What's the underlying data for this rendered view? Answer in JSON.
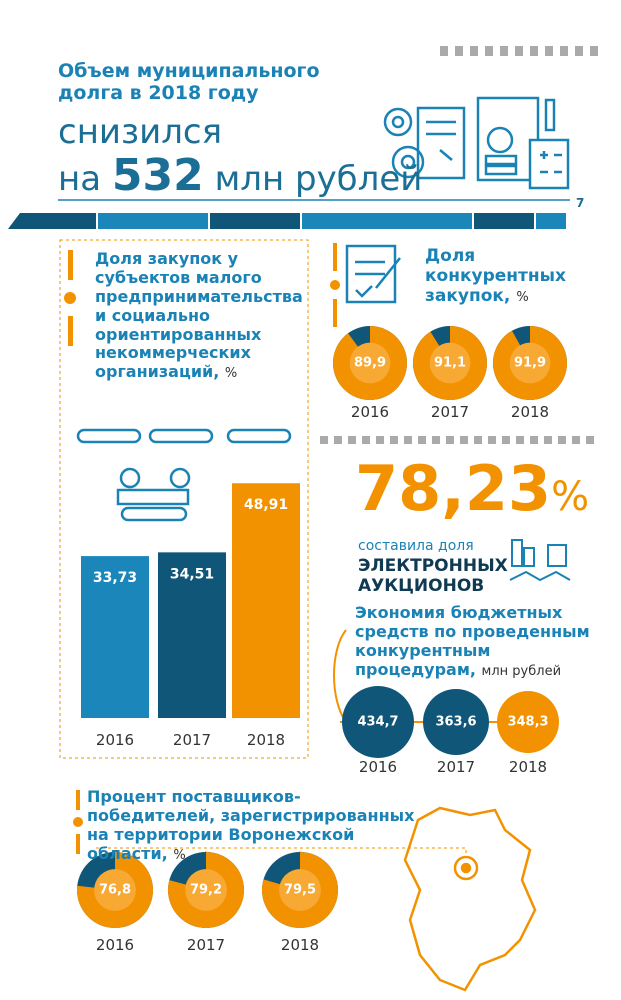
{
  "header": {
    "title": "Объем муниципального долга в 2018 году",
    "line1": "снизился",
    "prefix": "на",
    "value": "532",
    "unit": "млн рублей",
    "page": "7"
  },
  "highlight": {
    "value": "78,23",
    "unit": "%",
    "text": "составила доля",
    "emphasis": "ЭЛЕКТРОННЫХ АУКЦИОНОВ"
  },
  "chart_data": [
    {
      "type": "bar",
      "title": "Доля закупок у субъектов малого предпринимательства и социально ориентированных некоммерческих организаций,",
      "unit": "%",
      "categories": [
        "2016",
        "2017",
        "2018"
      ],
      "values": [
        33.73,
        34.51,
        48.91
      ],
      "value_labels": [
        "33,73",
        "34,51",
        "48,91"
      ],
      "colors": [
        "#1a86b9",
        "#0f5679",
        "#f39200"
      ]
    },
    {
      "type": "donut",
      "title": "Доля конкурентных закупок,",
      "unit": "%",
      "categories": [
        "2016",
        "2017",
        "2018"
      ],
      "values": [
        89.9,
        91.1,
        91.9
      ],
      "value_labels": [
        "89,9",
        "91,1",
        "91,9"
      ],
      "colors": [
        "#f39200",
        "#0f5679"
      ]
    },
    {
      "type": "circle",
      "title": "Экономия бюджетных средств по проведенным конкурентным процедурам,",
      "unit": "млн рублей",
      "categories": [
        "2016",
        "2017",
        "2018"
      ],
      "values": [
        434.7,
        363.6,
        348.3
      ],
      "value_labels": [
        "434,7",
        "363,6",
        "348,3"
      ],
      "colors": [
        "#0f5679",
        "#0f5679",
        "#f39200"
      ]
    },
    {
      "type": "donut",
      "title": "Процент поставщиков-победителей, зарегистрированных на территории Воронежской области,",
      "unit": "%",
      "categories": [
        "2016",
        "2017",
        "2018"
      ],
      "values": [
        76.8,
        79.2,
        79.5
      ],
      "value_labels": [
        "76,8",
        "79,2",
        "79,5"
      ],
      "colors": [
        "#f39200",
        "#0f5679"
      ]
    }
  ]
}
